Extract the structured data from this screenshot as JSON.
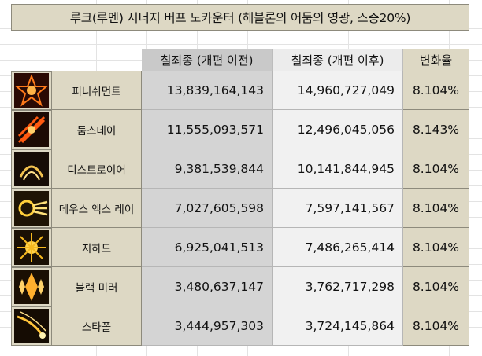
{
  "title": "루크(루멘) 시너지 버프 노카운터 (헤블론의 어둠의 영광, 스증20%)",
  "headers": {
    "before": "칠죄종 (개편 이전)",
    "after": "칠죄종 (개편 이후)",
    "rate": "변화율"
  },
  "rows": [
    {
      "name": "퍼니쉬먼트",
      "before": "13,839,164,143",
      "after": "14,960,727,049",
      "rate": "8.104%",
      "icon": "punishment-icon"
    },
    {
      "name": "둠스데이",
      "before": "11,555,093,571",
      "after": "12,496,045,056",
      "rate": "8.143%",
      "icon": "doomsday-icon"
    },
    {
      "name": "디스트로이어",
      "before": "9,381,539,844",
      "after": "10,141,844,945",
      "rate": "8.104%",
      "icon": "destroyer-icon"
    },
    {
      "name": "데우스 엑스 레이",
      "before": "7,027,605,598",
      "after": "7,597,141,567",
      "rate": "8.104%",
      "icon": "deus-ex-ray-icon"
    },
    {
      "name": "지하드",
      "before": "6,925,041,513",
      "after": "7,486,265,414",
      "rate": "8.104%",
      "icon": "jihad-icon"
    },
    {
      "name": "블랙 미러",
      "before": "3,480,637,147",
      "after": "3,762,717,298",
      "rate": "8.104%",
      "icon": "black-mirror-icon"
    },
    {
      "name": "스타폴",
      "before": "3,444,957,303",
      "after": "3,724,145,864",
      "rate": "8.104%",
      "icon": "starfall-icon"
    }
  ],
  "colors": {
    "tan": "#ddd8c4",
    "gray_header": "#c9c9c9",
    "gray_cell": "#d4d4d4",
    "light_cell": "#f1f1f1"
  }
}
